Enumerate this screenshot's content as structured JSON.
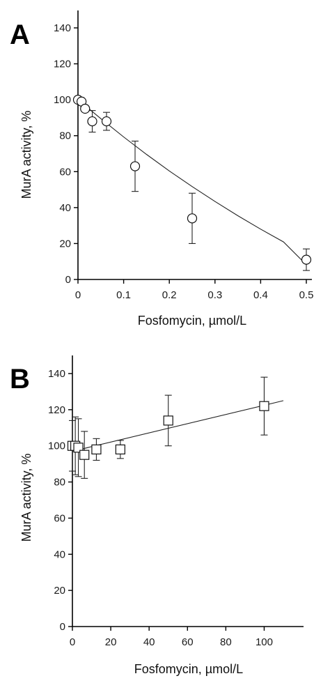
{
  "chart_data": [
    {
      "panel": "A",
      "type": "scatter",
      "marker": "circle",
      "xlabel": "Fosfomycin, µmol/L",
      "ylabel": "MurA activity, %",
      "xlim": [
        0,
        0.5
      ],
      "ylim": [
        0,
        150
      ],
      "x_ticks": [
        "0",
        "0.1",
        "0.2",
        "0.3",
        "0.4",
        "0.5"
      ],
      "y_ticks": [
        "0",
        "20",
        "40",
        "60",
        "80",
        "100",
        "120",
        "140"
      ],
      "grid": false,
      "series": [
        {
          "x": [
            0,
            0.0078,
            0.0156,
            0.03125,
            0.0625,
            0.125,
            0.25,
            0.5
          ],
          "y": [
            100,
            99,
            95,
            88,
            88,
            63,
            34,
            11
          ],
          "err": [
            0,
            0,
            0,
            6,
            5,
            14,
            14,
            6
          ]
        }
      ],
      "fit_curve": {
        "type": "exponential",
        "x": [
          0,
          0.05,
          0.1,
          0.15,
          0.2,
          0.25,
          0.3,
          0.35,
          0.4,
          0.45,
          0.5
        ],
        "y": [
          100,
          89.5,
          79.3,
          69.6,
          60.4,
          51.7,
          43.4,
          35.5,
          28,
          20.9,
          8.2
        ]
      }
    },
    {
      "panel": "B",
      "type": "scatter",
      "marker": "square",
      "xlabel": "Fosfomycin, µmol/L",
      "ylabel": "MurA activity, %",
      "xlim": [
        0,
        110
      ],
      "ylim": [
        0,
        150
      ],
      "x_ticks": [
        "0",
        "20",
        "40",
        "60",
        "80",
        "100"
      ],
      "y_ticks": [
        "0",
        "20",
        "40",
        "60",
        "80",
        "100",
        "120",
        "140"
      ],
      "grid": false,
      "series": [
        {
          "x": [
            0,
            1.5,
            3.1,
            6.25,
            12.5,
            25,
            50,
            100
          ],
          "y": [
            100,
            100,
            99,
            95,
            98,
            98,
            114,
            122
          ],
          "err": [
            14,
            16,
            16,
            13,
            6,
            5,
            14,
            16
          ]
        }
      ],
      "fit_line": {
        "type": "linear",
        "x": [
          0,
          110
        ],
        "y": [
          97,
          125
        ]
      }
    }
  ]
}
